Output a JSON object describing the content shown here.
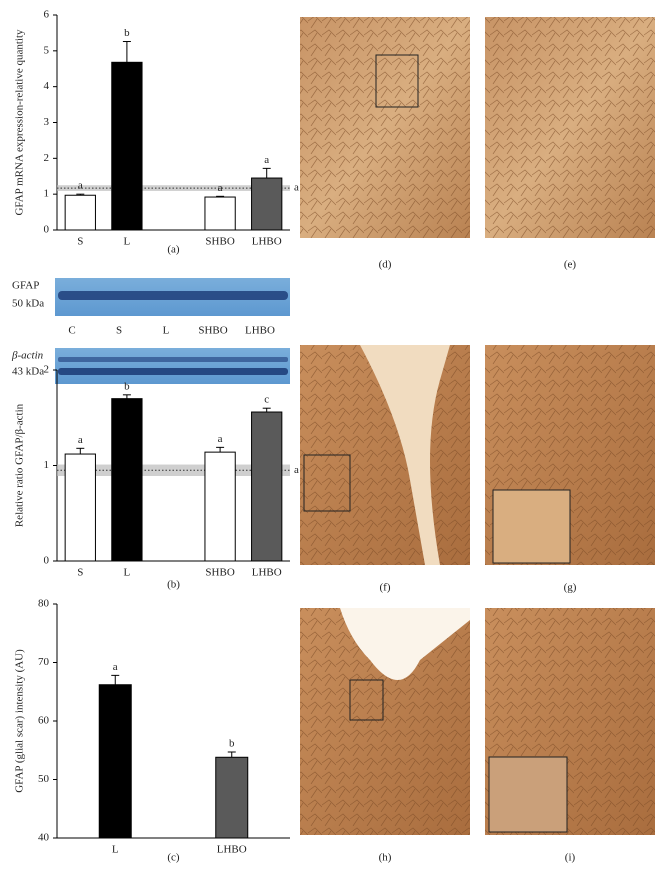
{
  "chart_data": [
    {
      "type": "bar",
      "ylabel": "GFAP mRNA expression-relative quantity",
      "panel": "(a)",
      "categories": [
        "S",
        "L",
        null,
        "SHBO",
        "LHBO"
      ],
      "values": [
        0.97,
        4.68,
        null,
        0.92,
        1.45
      ],
      "errors": [
        0.03,
        0.58,
        null,
        0.02,
        0.27
      ],
      "letters": [
        "a",
        "b",
        null,
        "a",
        "a"
      ],
      "colors": [
        "#ffffff",
        "#000000",
        null,
        "#ffffff",
        "#5a5a5a"
      ],
      "ylim": [
        0,
        6
      ],
      "yticks": [
        0,
        1,
        2,
        3,
        4,
        5,
        6
      ],
      "ref_band": {
        "value": 1.17,
        "low": 1.09,
        "high": 1.25,
        "label": "a"
      }
    },
    {
      "type": "bar",
      "ylabel": "Relative ratio GFAP/β-actin",
      "panel": "(b)",
      "categories": [
        "S",
        "L",
        null,
        "SHBO",
        "LHBO"
      ],
      "values": [
        1.12,
        1.7,
        null,
        1.14,
        1.56
      ],
      "errors": [
        0.06,
        0.04,
        null,
        0.05,
        0.04
      ],
      "letters": [
        "a",
        "b",
        null,
        "a",
        "c"
      ],
      "colors": [
        "#ffffff",
        "#000000",
        null,
        "#ffffff",
        "#5a5a5a"
      ],
      "ylim": [
        0,
        2
      ],
      "yticks": [
        0,
        1,
        2
      ],
      "ref_band": {
        "value": 0.95,
        "low": 0.89,
        "high": 1.01,
        "label": "a"
      }
    },
    {
      "type": "bar",
      "ylabel": "GFAP (glial scar) intensity (AU)",
      "panel": "(c)",
      "categories": [
        "L",
        "LHBO"
      ],
      "values": [
        66.2,
        53.8
      ],
      "errors": [
        1.6,
        0.9
      ],
      "letters": [
        "a",
        "b"
      ],
      "colors": [
        "#000000",
        "#5a5a5a"
      ],
      "ylim": [
        40,
        80
      ],
      "yticks": [
        40,
        50,
        60,
        70,
        80
      ]
    }
  ],
  "blot": {
    "gfap_label": "GFAP",
    "gfap_kda": "50 kDa",
    "actin_label": "β-actin",
    "actin_kda": "43 kDa",
    "lanes": [
      "C",
      "S",
      "L",
      "SHBO",
      "LHBO"
    ]
  },
  "image_panels": [
    "(d)",
    "(e)",
    "(f)",
    "(g)",
    "(h)",
    "(i)"
  ]
}
